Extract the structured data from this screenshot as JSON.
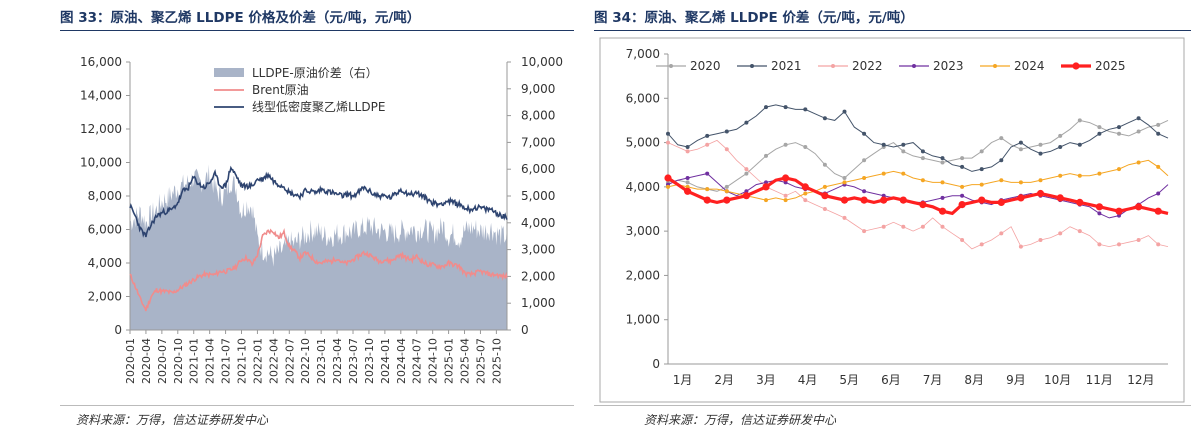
{
  "left_figure": {
    "title": "图 33：原油、聚乙烯 LLDPE 价格及价差（元/吨，元/吨）",
    "source": "资料来源：万得，信达证券研发中心"
  },
  "right_figure": {
    "title": "图 34：原油、聚乙烯 LLDPE 价差（元/吨，元/吨）",
    "source": "资料来源：万得，信达证券研发中心"
  },
  "colors": {
    "spread_area": "#a9b4c8",
    "brent": "#f08c8c",
    "lldpe": "#2e4470",
    "y2020": "#a6a6a6",
    "y2021": "#44546a",
    "y2022": "#f4a3a3",
    "y2023": "#7030a0",
    "y2024": "#f5a623",
    "y2025": "#ff2020"
  },
  "chart_data": [
    {
      "type": "area+line",
      "title": "图 33：原油、聚乙烯 LLDPE 价格及价差（元/吨，元/吨）",
      "legend_position": "top-center",
      "y_left": {
        "ticks": [
          "0",
          "2,000",
          "4,000",
          "6,000",
          "8,000",
          "10,000",
          "12,000",
          "14,000",
          "16,000"
        ],
        "ylim": [
          0,
          16000
        ]
      },
      "y_right": {
        "ticks": [
          "0",
          "1,000",
          "2,000",
          "3,000",
          "4,000",
          "5,000",
          "6,000",
          "7,000",
          "8,000",
          "9,000",
          "10,000"
        ],
        "ylim": [
          0,
          10000
        ]
      },
      "x_ticks": [
        "2020-01",
        "2020-04",
        "2020-07",
        "2020-10",
        "2021-01",
        "2021-04",
        "2021-07",
        "2021-10",
        "2022-01",
        "2022-04",
        "2022-07",
        "2022-10",
        "2023-01",
        "2023-04",
        "2023-07",
        "2023-10",
        "2024-01",
        "2024-04",
        "2024-07",
        "2024-10",
        "2025-01",
        "2025-04",
        "2025-07",
        "2025-10"
      ],
      "months": [
        "2020-01",
        "2020-02",
        "2020-03",
        "2020-04",
        "2020-05",
        "2020-06",
        "2020-07",
        "2020-08",
        "2020-09",
        "2020-10",
        "2020-11",
        "2020-12",
        "2021-01",
        "2021-02",
        "2021-03",
        "2021-04",
        "2021-05",
        "2021-06",
        "2021-07",
        "2021-08",
        "2021-09",
        "2021-10",
        "2021-11",
        "2021-12",
        "2022-01",
        "2022-02",
        "2022-03",
        "2022-04",
        "2022-05",
        "2022-06",
        "2022-07",
        "2022-08",
        "2022-09",
        "2022-10",
        "2022-11",
        "2022-12",
        "2023-01",
        "2023-02",
        "2023-03",
        "2023-04",
        "2023-05",
        "2023-06",
        "2023-07",
        "2023-08",
        "2023-09",
        "2023-10",
        "2023-11",
        "2023-12",
        "2024-01",
        "2024-02",
        "2024-03",
        "2024-04",
        "2024-05",
        "2024-06",
        "2024-07",
        "2024-08",
        "2024-09",
        "2024-10",
        "2024-11",
        "2024-12",
        "2025-01",
        "2025-02",
        "2025-03",
        "2025-04",
        "2025-05",
        "2025-06",
        "2025-07",
        "2025-08",
        "2025-09",
        "2025-10",
        "2025-11",
        "2025-12"
      ],
      "series": [
        {
          "name": "LLDPE-原油价差（右）",
          "axis": "right",
          "kind": "area",
          "values": [
            4000,
            4200,
            4400,
            4000,
            4300,
            4500,
            4800,
            4900,
            5100,
            5300,
            5400,
            5500,
            5700,
            5500,
            5600,
            5800,
            5300,
            5000,
            5100,
            5600,
            5300,
            4400,
            4700,
            4600,
            3400,
            3000,
            2900,
            2700,
            2900,
            3000,
            3300,
            3200,
            3400,
            3500,
            3700,
            3700,
            3600,
            3500,
            3500,
            3600,
            3600,
            3700,
            3600,
            3800,
            3800,
            3900,
            3800,
            3700,
            3700,
            3600,
            3600,
            3700,
            3700,
            3800,
            3700,
            3800,
            3700,
            3600,
            3700,
            3900,
            3500,
            3600,
            3400,
            3700,
            3800,
            3800,
            3700,
            3700,
            3800,
            3600,
            3500,
            3500
          ]
        },
        {
          "name": "Brent原油",
          "axis": "left",
          "kind": "line",
          "values": [
            3300,
            2600,
            1800,
            1200,
            2000,
            2400,
            2300,
            2300,
            2200,
            2400,
            2600,
            2800,
            3000,
            3200,
            3300,
            3300,
            3300,
            3500,
            3500,
            3600,
            3800,
            4200,
            4300,
            3900,
            4500,
            5600,
            5900,
            5900,
            5500,
            5800,
            5000,
            4700,
            4300,
            4600,
            4400,
            4100,
            4000,
            4100,
            4100,
            4300,
            4000,
            4000,
            4200,
            4400,
            4600,
            4500,
            4300,
            4100,
            4200,
            4100,
            4300,
            4500,
            4300,
            4200,
            4400,
            4100,
            3900,
            3900,
            3800,
            3800,
            4000,
            3900,
            3800,
            3400,
            3300,
            3400,
            3500,
            3400,
            3300,
            3300,
            3200,
            3200
          ]
        },
        {
          "name": "线型低密度聚乙烯LLDPE",
          "axis": "left",
          "kind": "line",
          "values": [
            7400,
            6800,
            6000,
            5600,
            6300,
            6800,
            7000,
            7100,
            7200,
            7600,
            8300,
            8500,
            9100,
            8700,
            8500,
            8800,
            9300,
            8600,
            8600,
            9700,
            9200,
            8600,
            8600,
            8600,
            9000,
            9000,
            9300,
            8900,
            8700,
            8600,
            8200,
            8100,
            8000,
            8300,
            8300,
            8200,
            8400,
            8300,
            8200,
            8100,
            8000,
            8100,
            8000,
            8200,
            8500,
            8300,
            8100,
            8000,
            8000,
            7900,
            8100,
            8400,
            8200,
            8100,
            8200,
            8000,
            7800,
            7600,
            7500,
            7600,
            7700,
            7600,
            7500,
            7300,
            7200,
            7300,
            7300,
            7200,
            7200,
            7000,
            6800,
            6700
          ]
        }
      ]
    },
    {
      "type": "line",
      "title": "图 34：原油、聚乙烯 LLDPE 价差（元/吨，元/吨）",
      "legend_position": "top",
      "ylim": [
        0,
        7000
      ],
      "y_ticks": [
        "0",
        "1,000",
        "2,000",
        "3,000",
        "4,000",
        "5,000",
        "6,000",
        "7,000"
      ],
      "x_ticks": [
        "1月",
        "2月",
        "3月",
        "4月",
        "5月",
        "6月",
        "7月",
        "8月",
        "9月",
        "10月",
        "11月",
        "12月"
      ],
      "weeks_per_year": 52,
      "series": [
        {
          "name": "2020",
          "values": [
            4100,
            4150,
            4100,
            4000,
            3950,
            3900,
            4000,
            4150,
            4300,
            4500,
            4700,
            4850,
            4950,
            5000,
            4900,
            4750,
            4500,
            4300,
            4200,
            4400,
            4600,
            4750,
            4900,
            5000,
            4800,
            4700,
            4650,
            4600,
            4550,
            4600,
            4650,
            4650,
            4800,
            5000,
            5100,
            4950,
            4850,
            4900,
            4950,
            5000,
            5150,
            5300,
            5500,
            5450,
            5350,
            5250,
            5200,
            5150,
            5250,
            5350,
            5400,
            5500
          ]
        },
        {
          "name": "2021",
          "values": [
            5200,
            4950,
            4900,
            5050,
            5150,
            5200,
            5250,
            5300,
            5450,
            5600,
            5800,
            5850,
            5800,
            5750,
            5750,
            5650,
            5550,
            5500,
            5700,
            5350,
            5200,
            5000,
            4950,
            4900,
            4950,
            5000,
            4800,
            4700,
            4650,
            4500,
            4450,
            4350,
            4400,
            4450,
            4600,
            4900,
            5000,
            4850,
            4750,
            4800,
            4900,
            5000,
            4950,
            5050,
            5200,
            5300,
            5350,
            5450,
            5550,
            5400,
            5200,
            5100
          ]
        },
        {
          "name": "2022",
          "values": [
            5000,
            4900,
            4800,
            4850,
            4950,
            5050,
            4850,
            4600,
            4400,
            4200,
            4000,
            3900,
            3800,
            3900,
            3700,
            3600,
            3500,
            3400,
            3300,
            3150,
            3000,
            3050,
            3100,
            3200,
            3100,
            3000,
            3100,
            3300,
            3100,
            2950,
            2800,
            2600,
            2700,
            2800,
            2950,
            3100,
            2650,
            2700,
            2800,
            2850,
            2950,
            3100,
            3000,
            2900,
            2700,
            2650,
            2700,
            2750,
            2800,
            2900,
            2700,
            2650
          ]
        },
        {
          "name": "2023",
          "values": [
            4050,
            4150,
            4200,
            4250,
            4300,
            4100,
            3900,
            3800,
            3900,
            4050,
            4100,
            4150,
            4100,
            4000,
            3950,
            3900,
            3850,
            3950,
            4050,
            4000,
            3900,
            3850,
            3800,
            3750,
            3700,
            3650,
            3650,
            3700,
            3750,
            3800,
            3800,
            3700,
            3650,
            3600,
            3700,
            3750,
            3800,
            3850,
            3800,
            3750,
            3700,
            3650,
            3600,
            3550,
            3400,
            3300,
            3350,
            3500,
            3600,
            3750,
            3850,
            4050
          ]
        },
        {
          "name": "2024",
          "values": [
            4000,
            4050,
            4000,
            3950,
            3950,
            3950,
            3900,
            3850,
            3800,
            3750,
            3700,
            3750,
            3700,
            3750,
            3850,
            3900,
            4000,
            4050,
            4100,
            4150,
            4200,
            4250,
            4300,
            4350,
            4300,
            4200,
            4150,
            4100,
            4100,
            4050,
            4000,
            4050,
            4050,
            4100,
            4150,
            4100,
            4100,
            4100,
            4150,
            4200,
            4250,
            4300,
            4250,
            4250,
            4300,
            4350,
            4400,
            4500,
            4550,
            4600,
            4450,
            4250
          ]
        },
        {
          "name": "2025",
          "values": [
            4200,
            4050,
            3900,
            3800,
            3700,
            3650,
            3700,
            3750,
            3800,
            3900,
            4000,
            4150,
            4200,
            4150,
            4000,
            3900,
            3800,
            3750,
            3700,
            3750,
            3700,
            3650,
            3700,
            3750,
            3700,
            3650,
            3600,
            3550,
            3450,
            3400,
            3600,
            3650,
            3700,
            3650,
            3650,
            3700,
            3750,
            3800,
            3850,
            3800,
            3750,
            3700,
            3650,
            3600,
            3550,
            3500,
            3450,
            3500,
            3550,
            3500,
            3450,
            3400
          ]
        }
      ]
    }
  ]
}
